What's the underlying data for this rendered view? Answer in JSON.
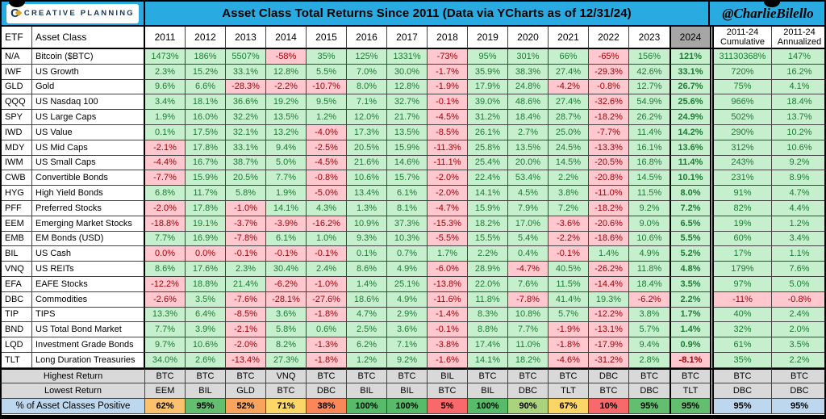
{
  "header": {
    "brand": "CREATIVE PLANNING",
    "handle": "@CharlieBilello"
  },
  "colors": {
    "banner": "#29ABE2",
    "brand_navy": "#17375E",
    "brand_gold": "#D9A52A",
    "grid_line": "#424242",
    "pos_bg": "#C6EFCE",
    "pos_text": "#1E7B34",
    "neg_bg": "#FFC7CE",
    "neg_text": "#9C0006",
    "hdr_2024_bg": "#A6A6A6",
    "summary_gray": "#D9D9D9",
    "label_blue": "#BDD7EE"
  },
  "chart_data": {
    "type": "table",
    "title": "Asset Class Total Returns Since 2011 (Data via YCharts as of 12/31/24)",
    "col_headers": {
      "etf": "ETF",
      "asset_class": "Asset Class",
      "years": [
        "2011",
        "2012",
        "2013",
        "2014",
        "2015",
        "2016",
        "2017",
        "2018",
        "2019",
        "2020",
        "2021",
        "2022",
        "2023",
        "2024"
      ],
      "cumulative": "2011-24\nCumulative",
      "annualized": "2011-24\nAnnualized"
    },
    "rows": [
      {
        "etf": "N/A",
        "asset_class": "Bitcoin ($BTC)",
        "values": [
          "1473%",
          "186%",
          "5507%",
          "-58%",
          "35%",
          "125%",
          "1331%",
          "-73%",
          "95%",
          "301%",
          "66%",
          "-65%",
          "156%",
          "121%"
        ],
        "cumulative": "31130368%",
        "annualized": "147%"
      },
      {
        "etf": "IWF",
        "asset_class": "US Growth",
        "values": [
          "2.3%",
          "15.2%",
          "33.1%",
          "12.8%",
          "5.5%",
          "7.0%",
          "30.0%",
          "-1.7%",
          "35.9%",
          "38.3%",
          "27.4%",
          "-29.3%",
          "42.6%",
          "33.1%"
        ],
        "cumulative": "720%",
        "annualized": "16.2%"
      },
      {
        "etf": "GLD",
        "asset_class": "Gold",
        "values": [
          "9.6%",
          "6.6%",
          "-28.3%",
          "-2.2%",
          "-10.7%",
          "8.0%",
          "12.8%",
          "-1.9%",
          "17.9%",
          "24.8%",
          "-4.2%",
          "-0.8%",
          "12.7%",
          "26.7%"
        ],
        "cumulative": "75%",
        "annualized": "4.1%"
      },
      {
        "etf": "QQQ",
        "asset_class": "US Nasdaq 100",
        "values": [
          "3.4%",
          "18.1%",
          "36.6%",
          "19.2%",
          "9.5%",
          "7.1%",
          "32.7%",
          "-0.1%",
          "39.0%",
          "48.6%",
          "27.4%",
          "-32.6%",
          "54.9%",
          "25.6%"
        ],
        "cumulative": "966%",
        "annualized": "18.4%"
      },
      {
        "etf": "SPY",
        "asset_class": "US Large Caps",
        "values": [
          "1.9%",
          "16.0%",
          "32.2%",
          "13.5%",
          "1.2%",
          "12.0%",
          "21.7%",
          "-4.5%",
          "31.2%",
          "18.4%",
          "28.7%",
          "-18.2%",
          "26.2%",
          "24.9%"
        ],
        "cumulative": "502%",
        "annualized": "13.7%"
      },
      {
        "etf": "IWD",
        "asset_class": "US Value",
        "values": [
          "0.1%",
          "17.5%",
          "32.1%",
          "13.2%",
          "-4.0%",
          "17.3%",
          "13.5%",
          "-8.5%",
          "26.1%",
          "2.7%",
          "25.0%",
          "-7.7%",
          "11.4%",
          "14.2%"
        ],
        "cumulative": "290%",
        "annualized": "10.2%"
      },
      {
        "etf": "MDY",
        "asset_class": "US Mid Caps",
        "values": [
          "-2.1%",
          "17.8%",
          "33.1%",
          "9.4%",
          "-2.5%",
          "20.5%",
          "15.9%",
          "-11.3%",
          "25.8%",
          "13.5%",
          "24.5%",
          "-13.3%",
          "16.1%",
          "13.6%"
        ],
        "cumulative": "312%",
        "annualized": "10.6%"
      },
      {
        "etf": "IWM",
        "asset_class": "US Small Caps",
        "values": [
          "-4.4%",
          "16.7%",
          "38.7%",
          "5.0%",
          "-4.5%",
          "21.6%",
          "14.6%",
          "-11.1%",
          "25.4%",
          "20.0%",
          "14.5%",
          "-20.5%",
          "16.8%",
          "11.4%"
        ],
        "cumulative": "243%",
        "annualized": "9.2%"
      },
      {
        "etf": "CWB",
        "asset_class": "Convertible Bonds",
        "values": [
          "-7.7%",
          "15.9%",
          "20.5%",
          "7.7%",
          "-0.8%",
          "10.6%",
          "15.7%",
          "-2.0%",
          "22.4%",
          "53.4%",
          "2.2%",
          "-20.8%",
          "14.5%",
          "10.1%"
        ],
        "cumulative": "231%",
        "annualized": "8.9%"
      },
      {
        "etf": "HYG",
        "asset_class": "High Yield Bonds",
        "values": [
          "6.8%",
          "11.7%",
          "5.8%",
          "1.9%",
          "-5.0%",
          "13.4%",
          "6.1%",
          "-2.0%",
          "14.1%",
          "4.5%",
          "3.8%",
          "-11.0%",
          "11.5%",
          "8.0%"
        ],
        "cumulative": "91%",
        "annualized": "4.7%"
      },
      {
        "etf": "PFF",
        "asset_class": "Preferred Stocks",
        "values": [
          "-2.0%",
          "17.8%",
          "-1.0%",
          "14.1%",
          "4.3%",
          "1.3%",
          "8.1%",
          "-4.7%",
          "15.9%",
          "7.9%",
          "7.2%",
          "-18.2%",
          "9.2%",
          "7.2%"
        ],
        "cumulative": "82%",
        "annualized": "4.4%"
      },
      {
        "etf": "EEM",
        "asset_class": "Emerging Market Stocks",
        "values": [
          "-18.8%",
          "19.1%",
          "-3.7%",
          "-3.9%",
          "-16.2%",
          "10.9%",
          "37.3%",
          "-15.3%",
          "18.2%",
          "17.0%",
          "-3.6%",
          "-20.6%",
          "9.0%",
          "6.5%"
        ],
        "cumulative": "19%",
        "annualized": "1.2%"
      },
      {
        "etf": "EMB",
        "asset_class": "EM Bonds (USD)",
        "values": [
          "7.7%",
          "16.9%",
          "-7.8%",
          "6.1%",
          "1.0%",
          "9.3%",
          "10.3%",
          "-5.5%",
          "15.5%",
          "5.4%",
          "-2.2%",
          "-18.6%",
          "10.6%",
          "5.5%"
        ],
        "cumulative": "60%",
        "annualized": "3.4%"
      },
      {
        "etf": "BIL",
        "asset_class": "US Cash",
        "values": [
          "0.0%",
          "0.0%",
          "-0.1%",
          "-0.1%",
          "-0.1%",
          "0.1%",
          "0.7%",
          "1.7%",
          "2.2%",
          "0.4%",
          "-0.1%",
          "1.4%",
          "4.9%",
          "5.2%"
        ],
        "cumulative": "17%",
        "annualized": "1.1%"
      },
      {
        "etf": "VNQ",
        "asset_class": "US REITs",
        "values": [
          "8.6%",
          "17.6%",
          "2.3%",
          "30.4%",
          "2.4%",
          "8.6%",
          "4.9%",
          "-6.0%",
          "28.9%",
          "-4.7%",
          "40.5%",
          "-26.2%",
          "11.8%",
          "4.8%"
        ],
        "cumulative": "179%",
        "annualized": "7.6%"
      },
      {
        "etf": "EFA",
        "asset_class": "EAFE Stocks",
        "values": [
          "-12.2%",
          "18.8%",
          "21.4%",
          "-6.2%",
          "-1.0%",
          "1.4%",
          "25.1%",
          "-13.8%",
          "22.0%",
          "7.6%",
          "11.5%",
          "-14.4%",
          "18.4%",
          "3.5%"
        ],
        "cumulative": "97%",
        "annualized": "5.0%"
      },
      {
        "etf": "DBC",
        "asset_class": "Commodities",
        "values": [
          "-2.6%",
          "3.5%",
          "-7.6%",
          "-28.1%",
          "-27.6%",
          "18.6%",
          "4.9%",
          "-11.6%",
          "11.8%",
          "-7.8%",
          "41.4%",
          "19.3%",
          "-6.2%",
          "2.2%"
        ],
        "cumulative": "-11%",
        "annualized": "-0.8%"
      },
      {
        "etf": "TIP",
        "asset_class": "TIPS",
        "values": [
          "13.3%",
          "6.4%",
          "-8.5%",
          "3.6%",
          "-1.8%",
          "4.7%",
          "2.9%",
          "-1.4%",
          "8.3%",
          "10.8%",
          "5.7%",
          "-12.2%",
          "3.8%",
          "1.7%"
        ],
        "cumulative": "40%",
        "annualized": "2.4%"
      },
      {
        "etf": "BND",
        "asset_class": "US Total Bond Market",
        "values": [
          "7.7%",
          "3.9%",
          "-2.1%",
          "5.8%",
          "0.6%",
          "2.5%",
          "3.6%",
          "-0.1%",
          "8.8%",
          "7.7%",
          "-1.9%",
          "-13.1%",
          "5.7%",
          "1.4%"
        ],
        "cumulative": "32%",
        "annualized": "2.0%"
      },
      {
        "etf": "LQD",
        "asset_class": "Investment Grade Bonds",
        "values": [
          "9.7%",
          "10.6%",
          "-2.0%",
          "8.2%",
          "-1.3%",
          "6.2%",
          "7.1%",
          "-3.8%",
          "17.4%",
          "11.0%",
          "-1.8%",
          "-17.9%",
          "9.4%",
          "0.9%"
        ],
        "cumulative": "61%",
        "annualized": "3.5%"
      },
      {
        "etf": "TLT",
        "asset_class": "Long Duration Treasuries",
        "values": [
          "34.0%",
          "2.6%",
          "-13.4%",
          "27.3%",
          "-1.8%",
          "1.2%",
          "9.2%",
          "-1.6%",
          "14.1%",
          "18.2%",
          "-4.6%",
          "-31.2%",
          "2.8%",
          "-8.1%"
        ],
        "cumulative": "35%",
        "annualized": "2.2%"
      }
    ],
    "summary": {
      "highest": {
        "label": "Highest Return",
        "values": [
          "BTC",
          "BTC",
          "BTC",
          "VNQ",
          "BTC",
          "BTC",
          "BTC",
          "BIL",
          "BTC",
          "BTC",
          "BTC",
          "DBC",
          "BTC",
          "BTC"
        ],
        "cumulative": "BTC",
        "annualized": "BTC"
      },
      "lowest": {
        "label": "Lowest Return",
        "values": [
          "EEM",
          "BIL",
          "GLD",
          "BTC",
          "DBC",
          "BIL",
          "BIL",
          "BTC",
          "BIL",
          "DBC",
          "TLT",
          "BTC",
          "DBC",
          "TLT"
        ],
        "cumulative": "DBC",
        "annualized": "DBC"
      },
      "pct_positive": {
        "label": "% of Asset Classes Positive",
        "values": [
          {
            "v": "62%",
            "bg": "#FBC16C"
          },
          {
            "v": "95%",
            "bg": "#63BE6F"
          },
          {
            "v": "52%",
            "bg": "#F9A45E"
          },
          {
            "v": "71%",
            "bg": "#FBD768"
          },
          {
            "v": "38%",
            "bg": "#F9875A"
          },
          {
            "v": "100%",
            "bg": "#57BB6B"
          },
          {
            "v": "100%",
            "bg": "#57BB6B"
          },
          {
            "v": "5%",
            "bg": "#F8696B"
          },
          {
            "v": "100%",
            "bg": "#57BB6B"
          },
          {
            "v": "90%",
            "bg": "#ABD27D"
          },
          {
            "v": "67%",
            "bg": "#FBD566"
          },
          {
            "v": "10%",
            "bg": "#F8696B"
          },
          {
            "v": "95%",
            "bg": "#63BE6F"
          },
          {
            "v": "95%",
            "bg": "#63BE6F"
          }
        ],
        "cumulative": {
          "v": "95%",
          "bg": "#BDD7EE"
        },
        "annualized": {
          "v": "95%",
          "bg": "#BDD7EE"
        }
      }
    }
  }
}
